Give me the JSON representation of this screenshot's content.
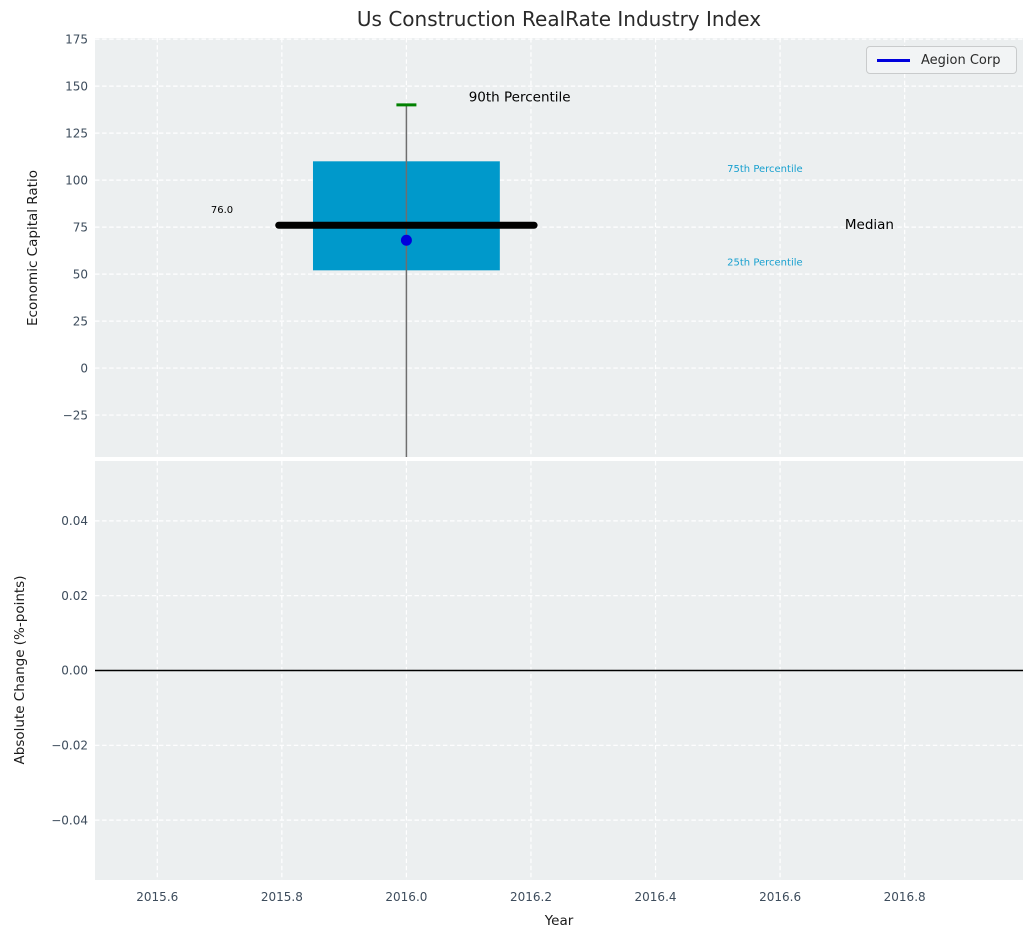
{
  "figure": {
    "title": "Us Construction RealRate Industry Index",
    "xlabel": "Year",
    "top": {
      "ylabel": "Economic Capital Ratio"
    },
    "bottom": {
      "ylabel": "Absolute Change (%-points)"
    },
    "legend": {
      "label": "Aegion Corp"
    }
  },
  "colors": {
    "figure_bg": "#ffffff",
    "plot_bg": "#eceff0",
    "grid": "#ffffff",
    "tick_label": "#3d4c5c",
    "title": "#2a2a2a",
    "axis_label": "#1a1a1a",
    "box_fill": "#0099cb",
    "median_line": "#000000",
    "whisker": "#6e6e6e",
    "p90_cap": "#008000",
    "company_dot": "#0000dd",
    "legend_line": "#0000dd",
    "legend_bg": "#f2f4f5",
    "legend_border": "#c9cbcc",
    "percentile_label": "#18a0cf",
    "zero_line": "#000000"
  },
  "chart_data": [
    {
      "type": "boxplot",
      "subplot": "top",
      "title": "Us Construction RealRate Industry Index",
      "ylabel": "Economic Capital Ratio",
      "xlim": [
        2015.5,
        2016.99
      ],
      "ylim": [
        -47.3,
        175.6
      ],
      "ytick_values": [
        175,
        150,
        125,
        100,
        75,
        50,
        25,
        0,
        -25
      ],
      "ytick_labels": [
        "175",
        "150",
        "125",
        "100",
        "75",
        "50",
        "25",
        "0",
        "−25"
      ],
      "grid": "white dashed, on",
      "legend": {
        "label": "Aegion Corp",
        "position": "upper right"
      },
      "box": {
        "x": 2016.0,
        "box_left": 2015.85,
        "box_right": 2016.15,
        "median_left": 2015.795,
        "median_right": 2016.205,
        "p90": 140,
        "p75": 110,
        "median": 76.0,
        "p25": 52,
        "lower_whisker": "extends below visible axis (clipped at plot bottom)"
      },
      "company_point": {
        "name": "Aegion Corp",
        "x": 2016.0,
        "y": 68
      },
      "annotations": [
        {
          "id": "p90-percentile-label",
          "text": "90th Percentile",
          "x": 2016.1,
          "y": 144.5,
          "color": "#000000",
          "size": 13.5
        },
        {
          "id": "median-value-label",
          "text": "76.0",
          "x": 2015.686,
          "y": 84.5,
          "color": "#000000",
          "size": 10
        },
        {
          "id": "p75-percentile-label",
          "text": "75th Percentile",
          "x": 2016.515,
          "y": 106.3,
          "color": "#18a0cf",
          "size": 10
        },
        {
          "id": "median-label",
          "text": "Median",
          "x": 2016.704,
          "y": 76.5,
          "color": "#000000",
          "size": 13.5
        },
        {
          "id": "p25-percentile-label",
          "text": "25th Percentile",
          "x": 2016.515,
          "y": 56.4,
          "color": "#18a0cf",
          "size": 10
        }
      ]
    },
    {
      "type": "line",
      "subplot": "bottom",
      "ylabel": "Absolute Change (%-points)",
      "xlabel": "Year",
      "xlim": [
        2015.5,
        2016.99
      ],
      "ylim": [
        -0.056,
        0.056
      ],
      "ytick_values": [
        0.04,
        0.02,
        0.0,
        -0.02,
        -0.04
      ],
      "ytick_labels": [
        "0.04",
        "0.02",
        "0.00",
        "−0.02",
        "−0.04"
      ],
      "xtick_values": [
        2015.6,
        2015.8,
        2016.0,
        2016.2,
        2016.4,
        2016.6,
        2016.8
      ],
      "xtick_labels": [
        "2015.6",
        "2015.8",
        "2016.0",
        "2016.2",
        "2016.4",
        "2016.6",
        "2016.8"
      ],
      "grid": "white dashed, on",
      "zero_line": 0.0,
      "series": []
    }
  ]
}
